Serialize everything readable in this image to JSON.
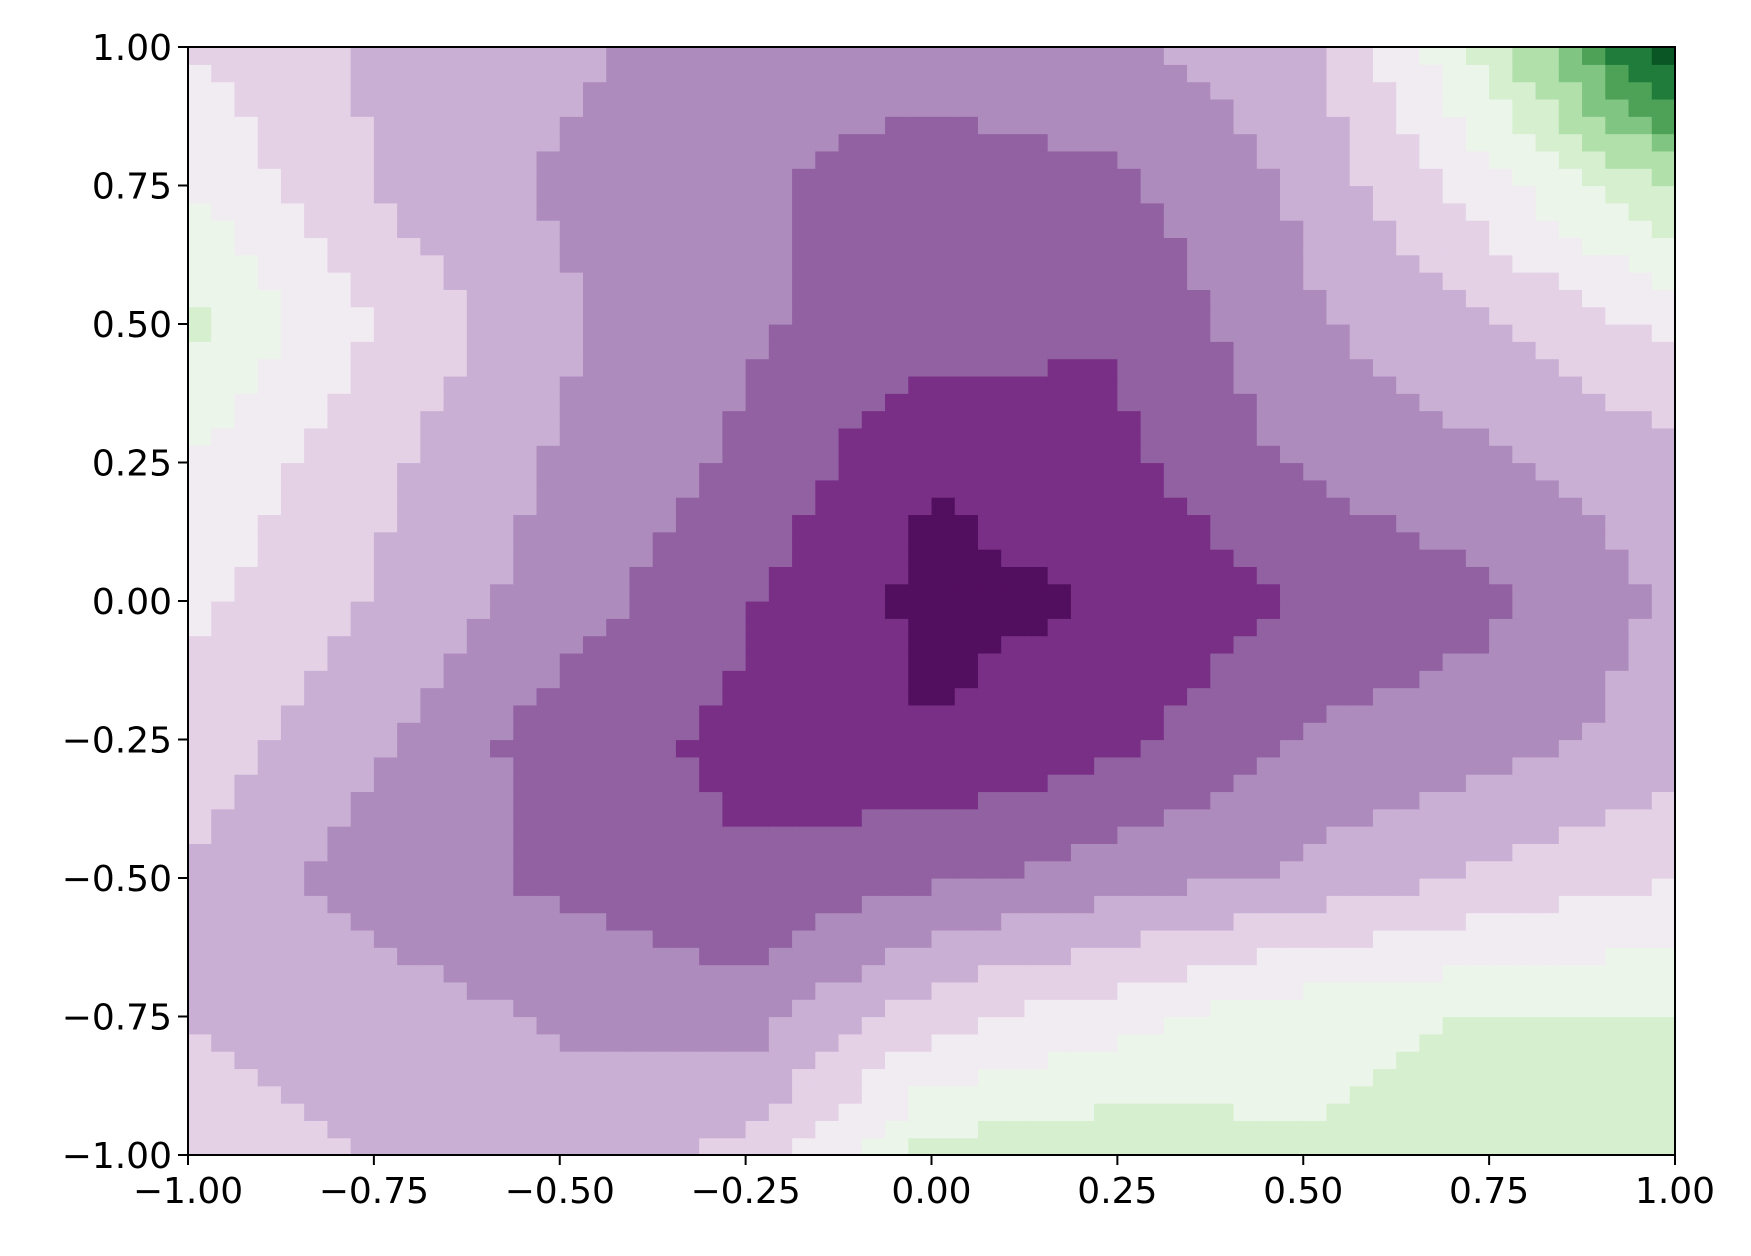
{
  "chart_data": {
    "type": "contourf",
    "colormap": "PRGn",
    "x": [
      -1,
      -0.75,
      -0.5,
      -0.25,
      0,
      0.25,
      0.5,
      0.75,
      1
    ],
    "y": [
      -1,
      -0.75,
      -0.5,
      -0.25,
      0,
      0.25,
      0.5,
      0.75,
      1
    ],
    "z": [
      [
        -0.2,
        -0.3,
        -0.35,
        -0.25,
        0.2,
        0.25,
        0.15,
        0.2,
        0.15
      ],
      [
        -0.3,
        -0.35,
        -0.45,
        -0.5,
        -0.2,
        -0.05,
        0.1,
        0.15,
        0.15
      ],
      [
        -0.3,
        -0.5,
        -0.6,
        -0.7,
        -0.6,
        -0.5,
        -0.4,
        -0.25,
        -0.15
      ],
      [
        -0.2,
        -0.4,
        -0.65,
        -0.75,
        -0.85,
        -0.75,
        -0.55,
        -0.5,
        -0.35
      ],
      [
        -0.1,
        -0.3,
        -0.5,
        -0.7,
        -0.9,
        -0.85,
        -0.7,
        -0.6,
        -0.4
      ],
      [
        0.0,
        -0.25,
        -0.45,
        -0.6,
        -0.85,
        -0.75,
        -0.55,
        -0.45,
        -0.35
      ],
      [
        0.2,
        -0.15,
        -0.4,
        -0.55,
        -0.65,
        -0.7,
        -0.45,
        -0.3,
        -0.1
      ],
      [
        0.0,
        -0.3,
        -0.45,
        -0.55,
        -0.65,
        -0.6,
        -0.4,
        -0.05,
        0.3
      ],
      [
        -0.15,
        -0.3,
        -0.4,
        -0.5,
        -0.5,
        -0.45,
        -0.35,
        0.2,
        1.0
      ]
    ],
    "xlim": [
      -1,
      1
    ],
    "ylim": [
      -1,
      1
    ],
    "xticks": [
      {
        "value": -1,
        "label": "−1.00"
      },
      {
        "value": -0.75,
        "label": "−0.75"
      },
      {
        "value": -0.5,
        "label": "−0.50"
      },
      {
        "value": -0.25,
        "label": "−0.25"
      },
      {
        "value": 0,
        "label": "0.00"
      },
      {
        "value": 0.25,
        "label": "0.25"
      },
      {
        "value": 0.5,
        "label": "0.50"
      },
      {
        "value": 0.75,
        "label": "0.75"
      },
      {
        "value": 1,
        "label": "1.00"
      }
    ],
    "yticks": [
      {
        "value": -1,
        "label": "−1.00"
      },
      {
        "value": -0.75,
        "label": "−0.75"
      },
      {
        "value": -0.5,
        "label": "−0.50"
      },
      {
        "value": -0.25,
        "label": "−0.25"
      },
      {
        "value": 0,
        "label": "0.00"
      },
      {
        "value": 0.25,
        "label": "0.25"
      },
      {
        "value": 0.5,
        "label": "0.50"
      },
      {
        "value": 0.75,
        "label": "0.75"
      },
      {
        "value": 1,
        "label": "1.00"
      }
    ]
  }
}
